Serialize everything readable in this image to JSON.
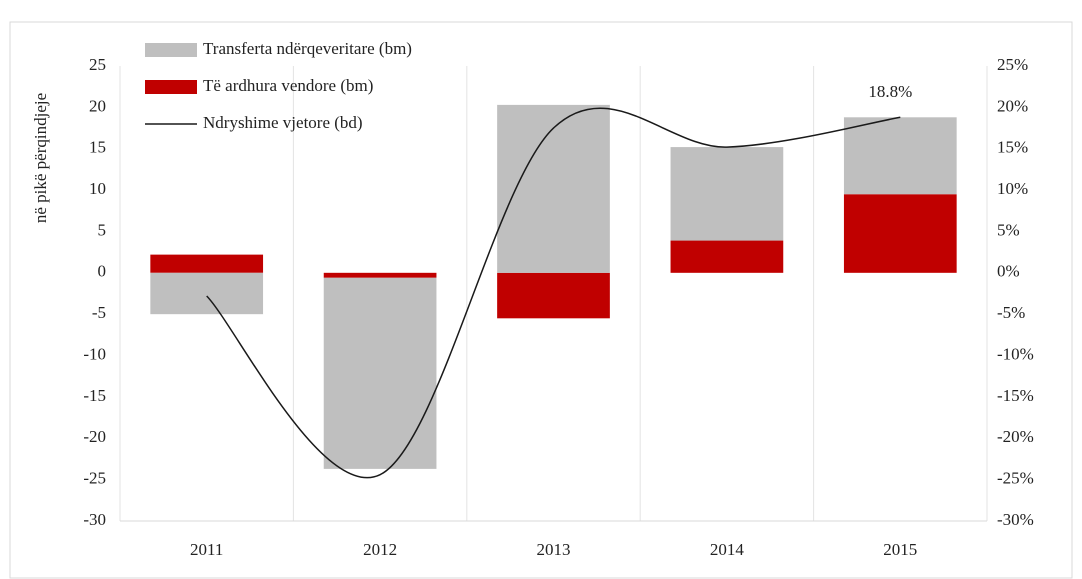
{
  "chart_data": {
    "type": "bar",
    "y_label": "në pikë përqindjeje",
    "categories": [
      "2011",
      "2012",
      "2013",
      "2014",
      "2015"
    ],
    "series": [
      {
        "name": "Transferta ndërqeveritare (bm)",
        "color": "#bfbfbf",
        "type": "bar",
        "values": [
          -5,
          -23.1,
          20.3,
          11.3,
          9.3
        ]
      },
      {
        "name": "Të ardhura vendore (bm)",
        "color": "#c00000",
        "type": "bar",
        "values": [
          2.2,
          -0.6,
          -5.5,
          3.9,
          9.5
        ]
      },
      {
        "name": "Ndryshime vjetore (bd)",
        "color": "#1a1a1a",
        "type": "line",
        "axis": "y2",
        "values": [
          -2.8,
          -24.4,
          17.5,
          15.2,
          18.8
        ],
        "value_labels": [
          null,
          null,
          null,
          null,
          "18.8%"
        ]
      }
    ],
    "stacked": true,
    "ylim": [
      -30,
      25
    ],
    "yticks": [
      -30,
      -25,
      -20,
      -15,
      -10,
      -5,
      0,
      5,
      10,
      15,
      20,
      25
    ],
    "y2lim": [
      -30,
      25
    ],
    "y2ticks": [
      {
        "value": -30,
        "label": "-30%"
      },
      {
        "value": -25,
        "label": "-25%"
      },
      {
        "value": -20,
        "label": "-20%"
      },
      {
        "value": -15,
        "label": "-15%"
      },
      {
        "value": -10,
        "label": "-10%"
      },
      {
        "value": -5,
        "label": "-5%"
      },
      {
        "value": 0,
        "label": "0%"
      },
      {
        "value": 5,
        "label": "5%"
      },
      {
        "value": 10,
        "label": "10%"
      },
      {
        "value": 15,
        "label": "15%"
      },
      {
        "value": 20,
        "label": "20%"
      },
      {
        "value": 25,
        "label": "25%"
      }
    ],
    "legend": "top-left",
    "grid": "x"
  }
}
